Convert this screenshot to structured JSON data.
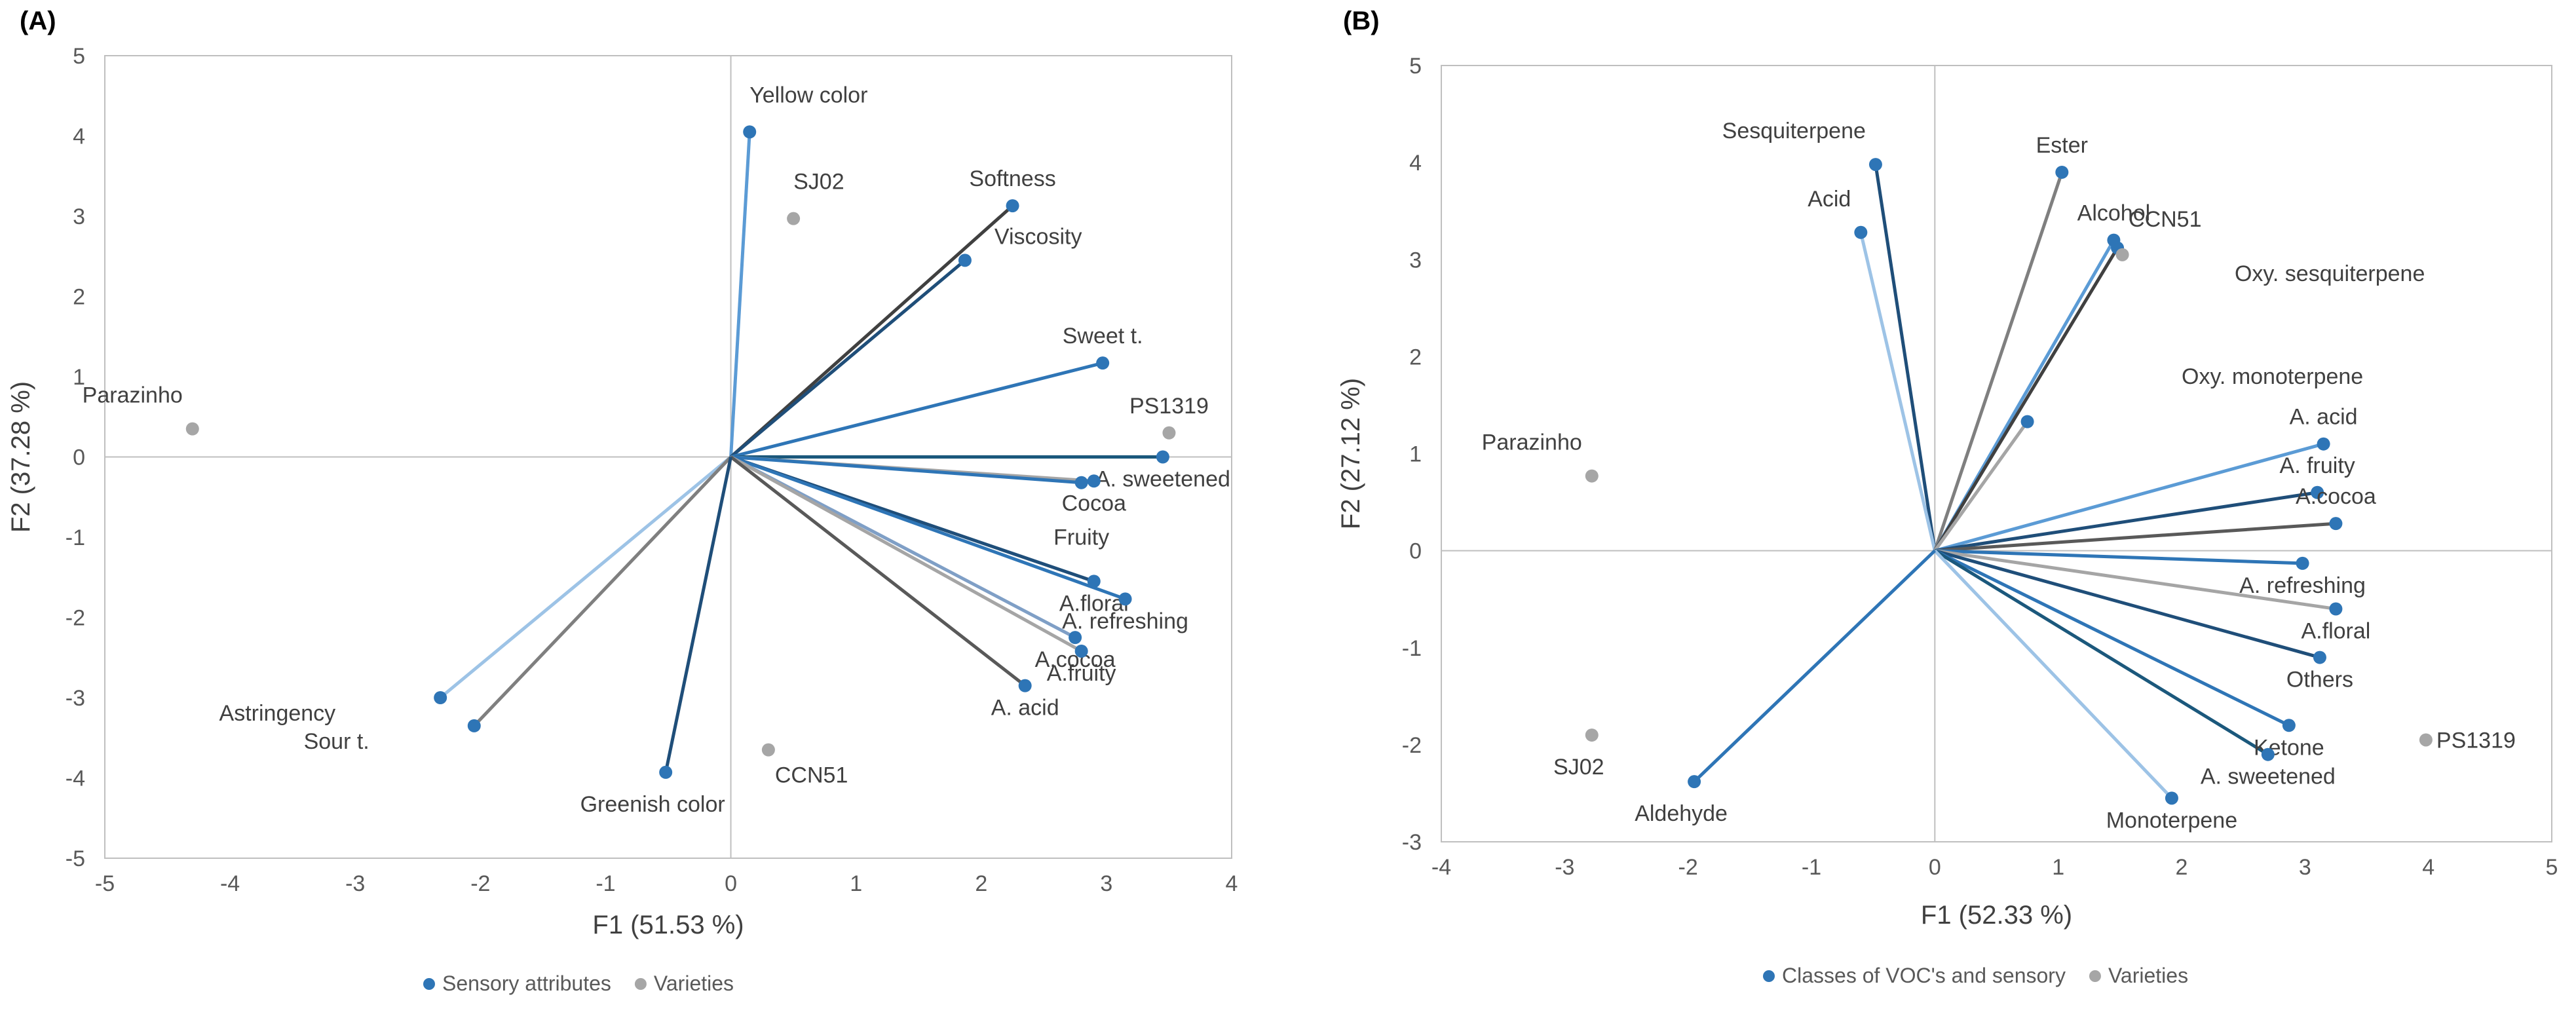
{
  "colors": {
    "attribute": "#2e75b6",
    "variety": "#a6a6a6",
    "axis": "#bfbfbf",
    "tick": "#595959",
    "text": "#404040",
    "vector_palette": [
      "#5b9bd5",
      "#1f4e79",
      "#2e75b6",
      "#404040",
      "#9dc3e6",
      "#1b587c",
      "#7f7f7f",
      "#a5a5a5",
      "#41719c"
    ]
  },
  "chart_data": [
    {
      "type": "scatter",
      "panel_label": "(A)",
      "title": "",
      "xlabel": "F1 (51.53 %)",
      "ylabel": "F2 (37.28 %)",
      "xlim": [
        -5,
        4
      ],
      "ylim": [
        -5,
        5
      ],
      "xticks": [
        -5,
        -4,
        -3,
        -2,
        -1,
        0,
        1,
        2,
        3,
        4
      ],
      "yticks": [
        -5,
        -4,
        -3,
        -2,
        -1,
        0,
        1,
        2,
        3,
        4,
        5
      ],
      "legend": [
        "Sensory attributes",
        "Varieties"
      ],
      "attributes": [
        {
          "label": "Yellow color",
          "x": 0.15,
          "y": 4.05,
          "color": "#5b9bd5",
          "lpos": "above-right"
        },
        {
          "label": "Softness",
          "x": 2.25,
          "y": 3.13,
          "color": "#404040",
          "lpos": "above"
        },
        {
          "label": "Viscosity",
          "x": 1.87,
          "y": 2.45,
          "color": "#1f4e79",
          "lpos": "right-above"
        },
        {
          "label": "Sweet t.",
          "x": 2.97,
          "y": 1.17,
          "color": "#2e75b6",
          "lpos": "above"
        },
        {
          "label": "A. sweetened",
          "x": 3.45,
          "y": 0.0,
          "color": "#1b587c",
          "lpos": "below"
        },
        {
          "label": "Cocoa",
          "x": 2.9,
          "y": -0.3,
          "color": "#a5a5a5",
          "lpos": "below"
        },
        {
          "label": "Fruity",
          "x": 2.8,
          "y": -0.32,
          "color": "#2e75b6",
          "lpos": "below2"
        },
        {
          "label": "A.floral",
          "x": 2.9,
          "y": -1.55,
          "color": "#1f4e79",
          "lpos": "below"
        },
        {
          "label": "A. refreshing",
          "x": 3.15,
          "y": -1.77,
          "color": "#2e75b6",
          "lpos": "below"
        },
        {
          "label": "A.cocoa",
          "x": 2.75,
          "y": -2.25,
          "color": "#7f9fc6",
          "lpos": "below"
        },
        {
          "label": "A.fruity",
          "x": 2.8,
          "y": -2.42,
          "color": "#a5a5a5",
          "lpos": "below"
        },
        {
          "label": "A. acid",
          "x": 2.35,
          "y": -2.85,
          "color": "#595959",
          "lpos": "below"
        },
        {
          "label": "Astringency",
          "x": -2.32,
          "y": -3.0,
          "color": "#9dc3e6",
          "lpos": "left-below"
        },
        {
          "label": "Sour t.",
          "x": -2.05,
          "y": -3.35,
          "color": "#7f7f7f",
          "lpos": "left-below"
        },
        {
          "label": "Greenish color",
          "x": -0.52,
          "y": -3.93,
          "color": "#1f4e79",
          "lpos": "below-left"
        }
      ],
      "varieties": [
        {
          "label": "SJ02",
          "x": 0.5,
          "y": 2.97,
          "lpos": "above-right"
        },
        {
          "label": "Parazinho",
          "x": -4.3,
          "y": 0.35,
          "lpos": "above-left"
        },
        {
          "label": "PS1319",
          "x": 3.5,
          "y": 0.3,
          "lpos": "above"
        },
        {
          "label": "CCN51",
          "x": 0.3,
          "y": -3.65,
          "lpos": "below-right"
        }
      ]
    },
    {
      "type": "scatter",
      "panel_label": "(B)",
      "title": "",
      "xlabel": "F1 (52.33 %)",
      "ylabel": "F2 (27.12 %)",
      "xlim": [
        -4,
        5
      ],
      "ylim": [
        -3,
        5
      ],
      "xticks": [
        -4,
        -3,
        -2,
        -1,
        0,
        1,
        2,
        3,
        4,
        5
      ],
      "yticks": [
        -3,
        -2,
        -1,
        0,
        1,
        2,
        3,
        4,
        5
      ],
      "legend": [
        "Classes of VOC's and sensory",
        "Varieties"
      ],
      "attributes": [
        {
          "label": "Sesquiterpene",
          "x": -0.48,
          "y": 3.98,
          "color": "#1f4e79",
          "lpos": "above-left"
        },
        {
          "label": "Acid",
          "x": -0.6,
          "y": 3.28,
          "color": "#9dc3e6",
          "lpos": "above-left"
        },
        {
          "label": "Ester",
          "x": 1.03,
          "y": 3.9,
          "color": "#7f7f7f",
          "lpos": "above"
        },
        {
          "label": "Alcohol",
          "x": 1.45,
          "y": 3.2,
          "color": "#5b9bd5",
          "lpos": "above"
        },
        {
          "label": "CCN51",
          "x": 1.48,
          "y": 3.12,
          "color": "#404040",
          "lpos": "none"
        },
        {
          "label": "Oxy. sesquiterpene",
          "x": 0.75,
          "y": 1.33,
          "color": "#a5a5a5",
          "lpos": "none"
        },
        {
          "label": "A. acid",
          "x": 3.15,
          "y": 1.1,
          "color": "#5b9bd5",
          "lpos": "above"
        },
        {
          "label": "A. fruity",
          "x": 3.1,
          "y": 0.6,
          "color": "#1f4e79",
          "lpos": "above"
        },
        {
          "label": "A.cocoa",
          "x": 3.25,
          "y": 0.28,
          "color": "#595959",
          "lpos": "above"
        },
        {
          "label": "A. refreshing",
          "x": 2.98,
          "y": -0.13,
          "color": "#2e75b6",
          "lpos": "below"
        },
        {
          "label": "A.floral",
          "x": 3.25,
          "y": -0.6,
          "color": "#a5a5a5",
          "lpos": "below"
        },
        {
          "label": "Others",
          "x": 3.12,
          "y": -1.1,
          "color": "#1f4e79",
          "lpos": "below"
        },
        {
          "label": "Ketone",
          "x": 2.87,
          "y": -1.8,
          "color": "#2e75b6",
          "lpos": "below"
        },
        {
          "label": "A. sweetened",
          "x": 2.7,
          "y": -2.1,
          "color": "#1b587c",
          "lpos": "below"
        },
        {
          "label": "Monoterpene",
          "x": 1.92,
          "y": -2.55,
          "color": "#9dc3e6",
          "lpos": "below"
        },
        {
          "label": "Aldehyde",
          "x": -1.95,
          "y": -2.38,
          "color": "#2e75b6",
          "lpos": "below-left"
        }
      ],
      "extra_labels": [
        {
          "label": "CCN51",
          "x": 1.57,
          "y": 3.34
        },
        {
          "label": "Oxy. sesquiterpene",
          "x": 2.43,
          "y": 2.78
        },
        {
          "label": "Oxy. monoterpene",
          "x": 2.0,
          "y": 1.72
        }
      ],
      "varieties": [
        {
          "label": "Parazinho",
          "x": -2.78,
          "y": 0.77,
          "lpos": "above-left"
        },
        {
          "label": "SJ02",
          "x": -2.78,
          "y": -1.9,
          "lpos": "below-left"
        },
        {
          "label": "PS1319",
          "x": 3.98,
          "y": -1.95,
          "lpos": "right"
        },
        {
          "label": "",
          "x": 1.52,
          "y": 3.05,
          "lpos": "none"
        }
      ]
    }
  ]
}
